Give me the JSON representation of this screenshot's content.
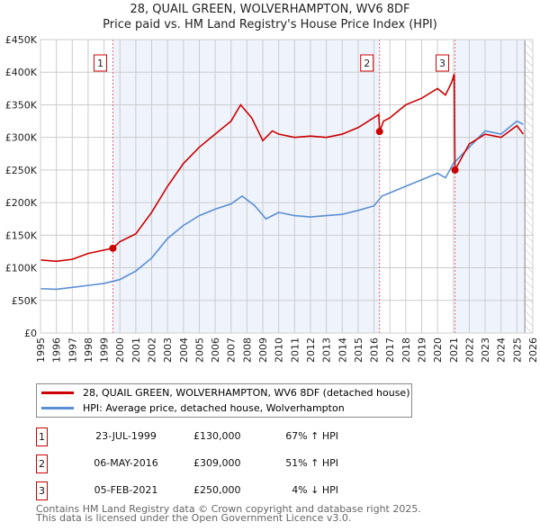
{
  "chart_data": {
    "type": "line",
    "title": "28, QUAIL GREEN, WOLVERHAMPTON, WV6 8DF",
    "subtitle": "Price paid vs. HM Land Registry's House Price Index (HPI)",
    "xlim": [
      1995,
      2026
    ],
    "ylim": [
      0,
      450000
    ],
    "yticks": [
      "£0",
      "£50K",
      "£100K",
      "£150K",
      "£200K",
      "£250K",
      "£300K",
      "£350K",
      "£400K",
      "£450K"
    ],
    "xticks": [
      "1995",
      "1996",
      "1997",
      "1998",
      "1999",
      "2000",
      "2001",
      "2002",
      "2003",
      "2004",
      "2005",
      "2006",
      "2007",
      "2008",
      "2009",
      "2010",
      "2011",
      "2012",
      "2013",
      "2014",
      "2015",
      "2016",
      "2017",
      "2018",
      "2019",
      "2020",
      "2021",
      "2022",
      "2023",
      "2024",
      "2025",
      "2026"
    ],
    "series": [
      {
        "name": "28, QUAIL GREEN, WOLVERHAMPTON, WV6 8DF (detached house)",
        "color": "#cc0000",
        "x": [
          1995,
          1996,
          1997,
          1998,
          1999.56,
          2000,
          2001,
          2002,
          2003,
          2004,
          2005,
          2006,
          2007,
          2007.6,
          2008.3,
          2009,
          2009.6,
          2010,
          2011,
          2012,
          2013,
          2014,
          2015,
          2016.3,
          2016.36,
          2016.6,
          2017,
          2018,
          2019,
          2020,
          2020.5,
          2020.9,
          2021.05,
          2021.1,
          2022,
          2023,
          2024,
          2025,
          2025.4
        ],
        "y": [
          112000,
          110000,
          113000,
          122000,
          130000,
          140000,
          152000,
          185000,
          225000,
          260000,
          285000,
          305000,
          325000,
          350000,
          330000,
          295000,
          310000,
          305000,
          300000,
          302000,
          300000,
          305000,
          315000,
          335000,
          309000,
          325000,
          330000,
          350000,
          360000,
          375000,
          365000,
          385000,
          397000,
          250000,
          290000,
          305000,
          300000,
          318000,
          305000
        ]
      },
      {
        "name": "HPI: Average price, detached house, Wolverhampton",
        "color": "#5b8fd4",
        "x": [
          1995,
          1996,
          1997,
          1998,
          1999,
          2000,
          2001,
          2002,
          2003,
          2004,
          2005,
          2006,
          2007,
          2007.7,
          2008.5,
          2009.2,
          2010,
          2011,
          2012,
          2013,
          2014,
          2015,
          2016,
          2016.5,
          2017,
          2018,
          2019,
          2020,
          2020.5,
          2021,
          2022,
          2023,
          2024,
          2025,
          2025.4
        ],
        "y": [
          68000,
          67000,
          70000,
          73000,
          76000,
          82000,
          95000,
          115000,
          145000,
          165000,
          180000,
          190000,
          198000,
          210000,
          195000,
          175000,
          185000,
          180000,
          178000,
          180000,
          182000,
          188000,
          195000,
          210000,
          215000,
          225000,
          235000,
          245000,
          238000,
          260000,
          285000,
          310000,
          305000,
          325000,
          320000
        ]
      }
    ],
    "sales": [
      {
        "n": "1",
        "x": 1999.56,
        "y": 130000,
        "date": "23-JUL-1999",
        "price": "£130,000",
        "hpi": "67% ↑ HPI"
      },
      {
        "n": "2",
        "x": 2016.35,
        "y": 309000,
        "date": "06-MAY-2016",
        "price": "£309,000",
        "hpi": "51% ↑ HPI"
      },
      {
        "n": "3",
        "x": 2021.1,
        "y": 250000,
        "date": "05-FEB-2021",
        "price": "£250,000",
        "hpi": "4% ↓ HPI"
      }
    ],
    "forecast_start": 2025.5,
    "legend_position": "below"
  },
  "footer": {
    "line1": "Contains HM Land Registry data © Crown copyright and database right 2025.",
    "line2": "This data is licensed under the Open Government Licence v3.0."
  }
}
